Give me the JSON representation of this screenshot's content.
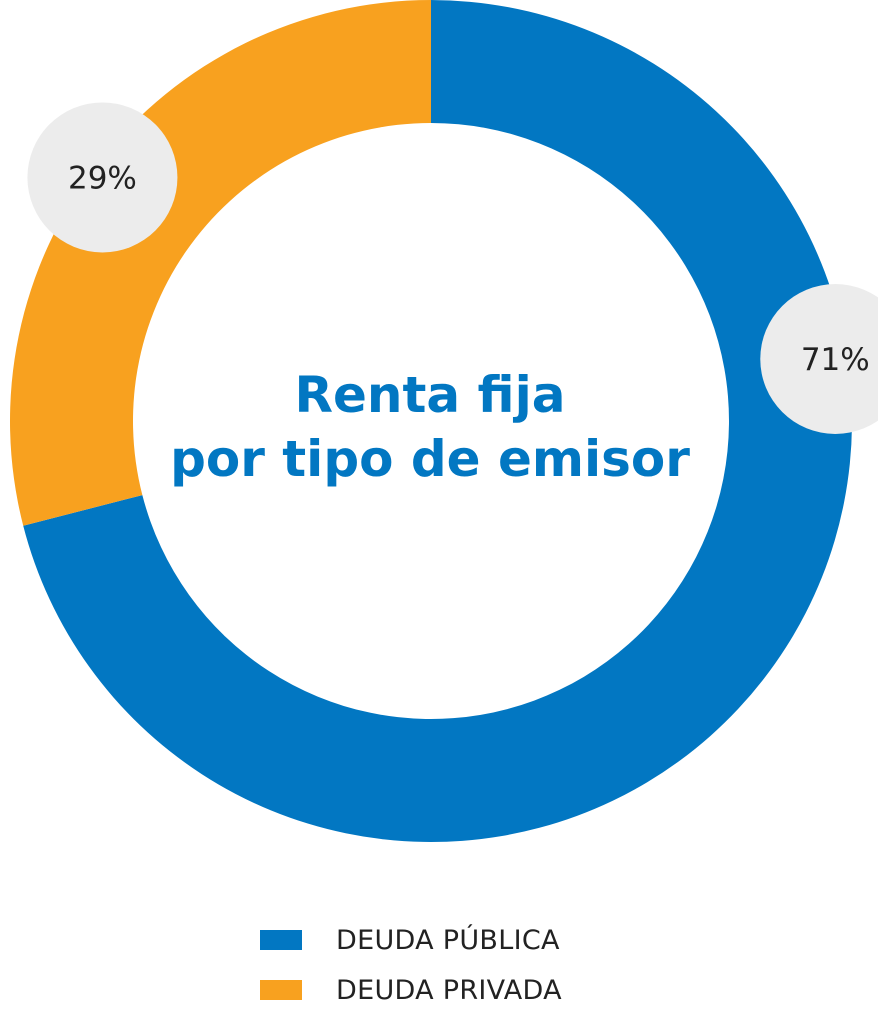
{
  "chart_data": {
    "type": "pie",
    "title": "Renta fija por tipo de emisor",
    "title_lines": [
      "Renta fija",
      "por tipo de emisor"
    ],
    "slices": [
      {
        "label": "DEUDA PÚBLICA",
        "value": 71,
        "value_label": "71%",
        "color": "#0277c2"
      },
      {
        "label": "DEUDA PRIVADA",
        "value": 29,
        "value_label": "29%",
        "color": "#f8a11f"
      }
    ],
    "donut": true,
    "legend_position": "bottom"
  },
  "colors": {
    "title": "#0277c2",
    "badge": "#ececec",
    "badge_text": "#222222"
  }
}
